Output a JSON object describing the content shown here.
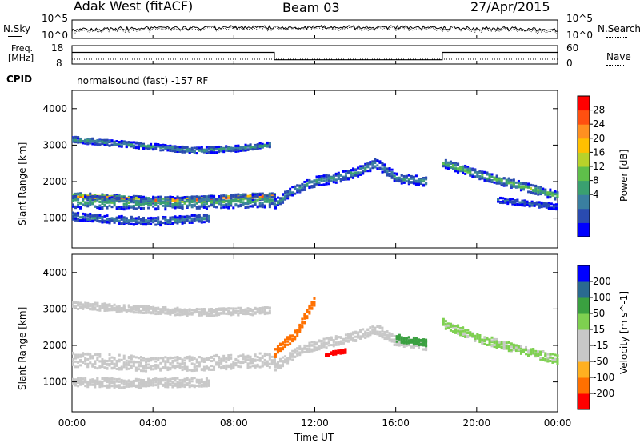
{
  "header": {
    "station": "Adak West (fitACF)",
    "beam": "Beam 03",
    "date": "27/Apr/2015"
  },
  "noise_panel": {
    "left_label": "N.Sky",
    "left_ticks": [
      "10^5",
      "10^0"
    ],
    "right_label": "N.Search",
    "right_ticks": [
      "10^5",
      "10^0"
    ]
  },
  "freq_panel": {
    "left_label_1": "Freq.",
    "left_label_2": "[MHz]",
    "left_ticks": [
      "18",
      "8"
    ],
    "right_label": "Nave",
    "right_ticks": [
      "60",
      "0"
    ],
    "cpid_label": "CPID",
    "cpid_text": "normalsound (fast) -157 RF"
  },
  "colors": {
    "power": [
      "#0000ff",
      "#2a4bb0",
      "#3a7fa0",
      "#3aa070",
      "#5fbf4a",
      "#b8d22a",
      "#ffc000",
      "#ff9020",
      "#ff5010",
      "#ff0000"
    ],
    "velocity": [
      "#ff0000",
      "#ff7000",
      "#ffb020",
      "#c8c8c8",
      "#c8c8c8",
      "#7ed050",
      "#3aa040",
      "#2a6a90",
      "#0000ff"
    ],
    "gray": "#c8c8c8"
  },
  "chart_data": [
    {
      "type": "heatmap",
      "title": "Power",
      "xlabel": "Time UT",
      "ylabel": "Slant Range [km]",
      "xlim": [
        0,
        24
      ],
      "ylim": [
        180,
        4500
      ],
      "x_ticks": [
        "00:00",
        "04:00",
        "08:00",
        "12:00",
        "16:00",
        "20:00",
        "00:00"
      ],
      "y_ticks": [
        "1000",
        "2000",
        "3000",
        "4000"
      ],
      "colorbar_label": "Power [dB]",
      "colorbar_ticks": [
        "28",
        "24",
        "20",
        "16",
        "12",
        "8",
        "4"
      ],
      "bands": [
        {
          "points": [
            [
              0,
              1600
            ],
            [
              2,
              1550
            ],
            [
              4,
              1480
            ],
            [
              6,
              1500
            ],
            [
              8,
              1560
            ],
            [
              10,
              1600
            ]
          ],
          "width": 180,
          "value": 28
        },
        {
          "points": [
            [
              0,
              1450
            ],
            [
              3,
              1400
            ],
            [
              6,
              1420
            ],
            [
              10,
              1480
            ]
          ],
          "width": 350,
          "value": 14
        },
        {
          "points": [
            [
              0,
              3150
            ],
            [
              2,
              3050
            ],
            [
              4,
              2950
            ],
            [
              6,
              2850
            ],
            [
              8,
              2900
            ],
            [
              9.8,
              3000
            ]
          ],
          "width": 160,
          "value": 12
        },
        {
          "points": [
            [
              0,
              1050
            ],
            [
              2,
              950
            ],
            [
              4,
              900
            ],
            [
              6.8,
              1000
            ]
          ],
          "width": 220,
          "value": 10
        },
        {
          "points": [
            [
              10,
              1400
            ],
            [
              11,
              1800
            ],
            [
              12,
              2000
            ],
            [
              13,
              2100
            ],
            [
              14,
              2250
            ],
            [
              15,
              2500
            ],
            [
              16,
              2100
            ],
            [
              17.5,
              2000
            ]
          ],
          "width": 260,
          "value": 12
        },
        {
          "points": [
            [
              18.3,
              2500
            ],
            [
              20,
              2200
            ],
            [
              22,
              1900
            ],
            [
              24,
              1600
            ]
          ],
          "width": 240,
          "value": 16
        },
        {
          "points": [
            [
              21,
              1500
            ],
            [
              24,
              1300
            ]
          ],
          "width": 150,
          "value": 8
        }
      ]
    },
    {
      "type": "heatmap",
      "title": "Velocity",
      "xlabel": "Time UT",
      "ylabel": "Slant Range [km]",
      "xlim": [
        0,
        24
      ],
      "ylim": [
        180,
        4500
      ],
      "x_ticks": [
        "00:00",
        "04:00",
        "08:00",
        "12:00",
        "16:00",
        "20:00",
        "00:00"
      ],
      "y_ticks": [
        "1000",
        "2000",
        "3000",
        "4000"
      ],
      "colorbar_label": "Velocity [m s^-1]",
      "colorbar_ticks": [
        "200",
        "100",
        "50",
        "15",
        "-15",
        "-50",
        "-100",
        "-200"
      ],
      "bands": [
        {
          "points": [
            [
              0,
              1600
            ],
            [
              2,
              1550
            ],
            [
              4,
              1480
            ],
            [
              6,
              1500
            ],
            [
              8,
              1560
            ],
            [
              10,
              1600
            ]
          ],
          "width": 400,
          "value": 0
        },
        {
          "points": [
            [
              0,
              3100
            ],
            [
              3,
              3000
            ],
            [
              6,
              2900
            ],
            [
              9.8,
              2950
            ]
          ],
          "width": 200,
          "value": 0
        },
        {
          "points": [
            [
              0,
              1000
            ],
            [
              3,
              950
            ],
            [
              6.8,
              1000
            ]
          ],
          "width": 250,
          "value": 0
        },
        {
          "points": [
            [
              10,
              1400
            ],
            [
              11,
              1800
            ],
            [
              12,
              2000
            ],
            [
              14,
              2250
            ],
            [
              15,
              2450
            ],
            [
              16,
              2100
            ],
            [
              17.5,
              2000
            ]
          ],
          "width": 260,
          "value": 0
        },
        {
          "points": [
            [
              16,
              2200
            ],
            [
              17.5,
              2050
            ]
          ],
          "width": 200,
          "value": 60
        },
        {
          "points": [
            [
              18.3,
              2600
            ],
            [
              20,
              2200
            ],
            [
              22,
              1900
            ],
            [
              24,
              1600
            ]
          ],
          "width": 240,
          "value": 20
        },
        {
          "points": [
            [
              10,
              1800
            ],
            [
              11,
              2300
            ],
            [
              12,
              3300
            ]
          ],
          "width": 250,
          "value": -60
        },
        {
          "points": [
            [
              12.5,
              1750
            ],
            [
              13.5,
              1850
            ]
          ],
          "width": 100,
          "value": -220
        }
      ]
    }
  ]
}
